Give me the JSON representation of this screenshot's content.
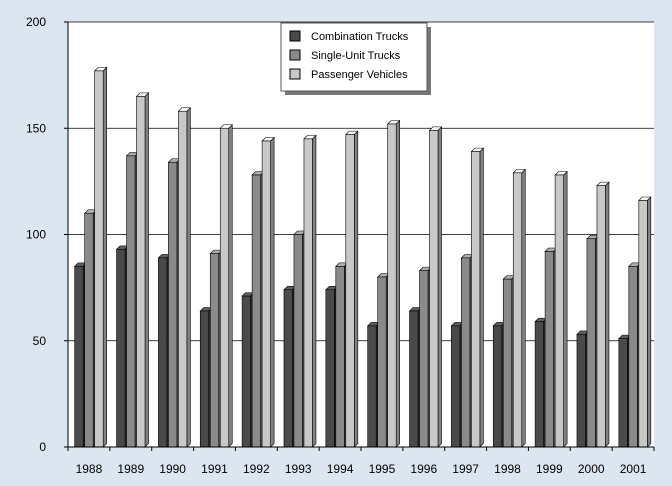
{
  "chart_data": {
    "type": "bar",
    "title": "",
    "xlabel": "",
    "ylabel": "",
    "categories": [
      "1988",
      "1989",
      "1990",
      "1991",
      "1992",
      "1993",
      "1994",
      "1995",
      "1996",
      "1997",
      "1998",
      "1999",
      "2000",
      "2001"
    ],
    "series": [
      {
        "name": "Combination Trucks",
        "color": "#4a4a4a",
        "values": [
          85,
          93,
          89,
          64,
          71,
          74,
          74,
          57,
          64,
          57,
          57,
          59,
          53,
          51
        ]
      },
      {
        "name": "Single-Unit Trucks",
        "color": "#8a8a8a",
        "values": [
          110,
          137,
          134,
          91,
          128,
          100,
          85,
          80,
          83,
          89,
          79,
          92,
          98,
          85
        ]
      },
      {
        "name": "Passenger Vehicles",
        "color": "#c8c8c8",
        "values": [
          177,
          165,
          158,
          150,
          144,
          145,
          147,
          152,
          149,
          139,
          129,
          128,
          123,
          116
        ]
      }
    ],
    "yticks": [
      0,
      50,
      100,
      150,
      200
    ],
    "ylim": [
      0,
      200
    ],
    "grid": true,
    "legend_position": "top-center",
    "background_color": "#dce6f0",
    "plot_background_color": "#ffffff"
  }
}
